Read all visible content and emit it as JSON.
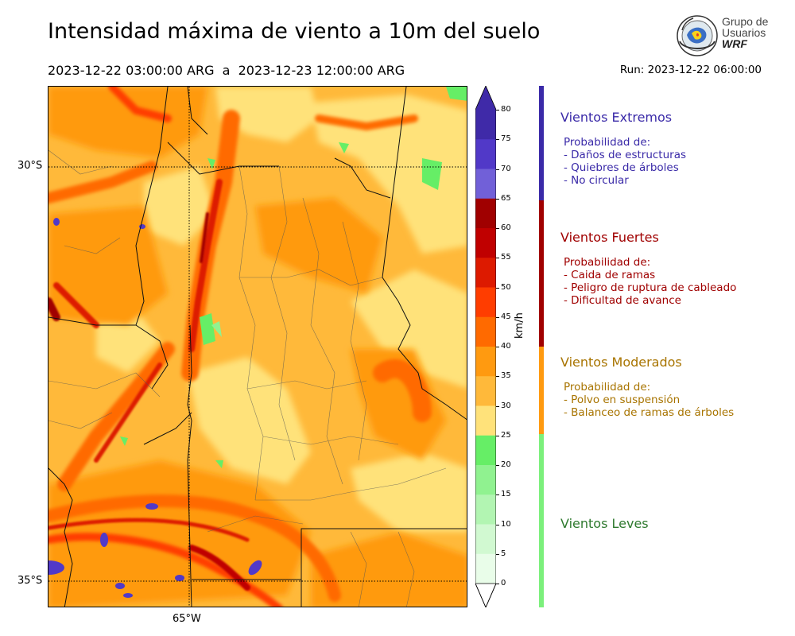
{
  "header": {
    "title": "Intensidad máxima de viento a 10m del suelo",
    "period": "2023-12-22 03:00:00 ARG  a  2023-12-23 12:00:00 ARG",
    "run": "Run: 2023-12-22 06:00:00"
  },
  "logo": {
    "line1": "Grupo de",
    "line2": "Usuarios",
    "line3": "WRF"
  },
  "map": {
    "lat_labels": [
      "30°S",
      "35°S"
    ],
    "lon_labels": [
      "65°W"
    ]
  },
  "colorbar": {
    "unit": "km/h",
    "ticks": [
      "80",
      "75",
      "70",
      "65",
      "60",
      "55",
      "50",
      "45",
      "40",
      "35",
      "30",
      "25",
      "20",
      "15",
      "10",
      "5",
      "0"
    ],
    "colors": {
      "75-80": "#3f2aa8",
      "70-75": "#5139c8",
      "65-70": "#7160d8",
      "60-65": "#a00000",
      "55-60": "#c00000",
      "50-55": "#dd1a00",
      "45-50": "#ff3d00",
      "40-45": "#ff6a00",
      "35-40": "#ff9a10",
      "30-35": "#ffb93a",
      "25-30": "#ffe27a",
      "20-25": "#66ee66",
      "15-20": "#90f290",
      "10-15": "#b2f5b2",
      "5-10": "#d1f9d1",
      "0-5": "#e9fde9"
    }
  },
  "categories": [
    {
      "title": "Vientos Extremos",
      "color": "#3a2aa8",
      "lines": [
        "Probabilidad de:",
        "- Daños de estructuras",
        "- Quiebres de árboles",
        "- No circular"
      ]
    },
    {
      "title": "Vientos Fuertes",
      "color": "#a00000",
      "lines": [
        "Probabilidad de:",
        "- Caida de ramas",
        "- Peligro de ruptura de cableado",
        "- Dificultad de avance"
      ]
    },
    {
      "title": "Vientos Moderados",
      "color": "#a87400",
      "lines": [
        "Probabilidad de:",
        "- Polvo en suspensión",
        "- Balanceo de ramas de árboles"
      ]
    },
    {
      "title": "Vientos Leves",
      "color": "#2f7a2f",
      "lines": []
    }
  ]
}
